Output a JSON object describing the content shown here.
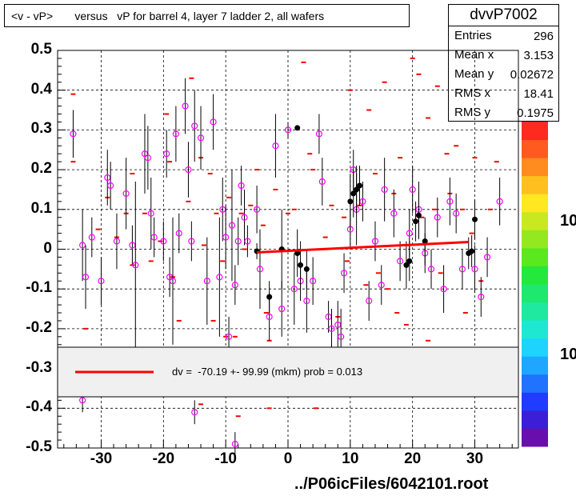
{
  "title": "<v - vP>       versus   vP for barrel 4, layer 7 ladder 2, all wafers",
  "stats": {
    "name": "dvvP7002",
    "rows": [
      {
        "label": "Entries",
        "value": "296"
      },
      {
        "label": "Mean x",
        "value": "3.153"
      },
      {
        "label": "Mean y",
        "value": "0.02672"
      },
      {
        "label": "RMS x",
        "value": "18.41"
      },
      {
        "label": "RMS y",
        "value": "0.1975"
      }
    ]
  },
  "fit_text": "dv =  -70.19 +- 99.99 (mkm) prob = 0.013",
  "file_label": "../P06icFiles/6042101.root",
  "z_labels": [
    "10",
    "10"
  ],
  "colors": {
    "fit": "#ff0000",
    "hist_bins": "#ff0000",
    "profile_markers": "#ff00ff",
    "points": "#000000"
  },
  "chart_data": {
    "type": "scatter",
    "title": "<v - vP>       versus   vP for barrel 4, layer 7 ladder 2, all wafers",
    "xlabel": "",
    "ylabel": "",
    "xlim": [
      -37,
      37
    ],
    "ylim": [
      -0.5,
      0.5
    ],
    "x_ticks": [
      "-30",
      "-20",
      "-10",
      "0",
      "10",
      "20",
      "30"
    ],
    "y_ticks": [
      "0.5",
      "0.4",
      "0.3",
      "0.2",
      "0.1",
      "0",
      "-0.1",
      "-0.2",
      "-0.3",
      "-0.4",
      "-0.5"
    ],
    "grid": true,
    "fit_line": {
      "x": [
        -5,
        29
      ],
      "y": [
        -0.008,
        0.018
      ]
    },
    "profile_points": [
      {
        "x": -34.5,
        "y": 0.29,
        "err": 0.06
      },
      {
        "x": -33,
        "y": 0.01,
        "err": 0.09
      },
      {
        "x": -32.5,
        "y": -0.07,
        "err": 0.08
      },
      {
        "x": -31.5,
        "y": 0.03,
        "err": 0.05
      },
      {
        "x": -30,
        "y": -0.08,
        "err": 0.06
      },
      {
        "x": -29,
        "y": 0.18,
        "err": 0.07
      },
      {
        "x": -28.5,
        "y": 0.16,
        "err": 0.06
      },
      {
        "x": -27.5,
        "y": 0.02,
        "err": 0.07
      },
      {
        "x": -26,
        "y": 0.14,
        "err": 0.09
      },
      {
        "x": -25,
        "y": 0.01,
        "err": 0.05
      },
      {
        "x": -24.5,
        "y": -0.04,
        "err": 0.21
      },
      {
        "x": -23,
        "y": 0.24,
        "err": 0.1
      },
      {
        "x": -22.5,
        "y": 0.23,
        "err": 0.08
      },
      {
        "x": -22,
        "y": 0.09,
        "err": 0.09
      },
      {
        "x": -21.5,
        "y": 0.03,
        "err": 0.05
      },
      {
        "x": -20,
        "y": 0.02,
        "err": 0.05
      },
      {
        "x": -19.5,
        "y": 0.24,
        "err": 0.06
      },
      {
        "x": -19,
        "y": -0.07,
        "err": 0.05
      },
      {
        "x": -18.5,
        "y": -0.08,
        "err": 0.16
      },
      {
        "x": -18,
        "y": 0.29,
        "err": 0.07
      },
      {
        "x": -17.5,
        "y": 0.04,
        "err": 0.05
      },
      {
        "x": -16.5,
        "y": 0.36,
        "err": 0.07
      },
      {
        "x": -16,
        "y": 0.2,
        "err": 0.07
      },
      {
        "x": -15.5,
        "y": 0.02,
        "err": 0.05
      },
      {
        "x": -15,
        "y": 0.31,
        "err": 0.09
      },
      {
        "x": -14,
        "y": 0.28,
        "err": 0.08
      },
      {
        "x": -13,
        "y": -0.08,
        "err": 0.11
      },
      {
        "x": -12,
        "y": 0.32,
        "err": 0.07
      },
      {
        "x": -11,
        "y": -0.07,
        "err": 0.15
      },
      {
        "x": -10.5,
        "y": 0.1,
        "err": 0.08
      },
      {
        "x": -10,
        "y": 0.03,
        "err": 0.08
      },
      {
        "x": -9.5,
        "y": -0.22,
        "err": 0.05
      },
      {
        "x": -9,
        "y": 0.06,
        "err": 0.14
      },
      {
        "x": -8.5,
        "y": -0.09,
        "err": 0.05
      },
      {
        "x": -8,
        "y": 0.02,
        "err": 0.06
      },
      {
        "x": -7.5,
        "y": 0.16,
        "err": 0.05
      },
      {
        "x": -7,
        "y": 0.08,
        "err": 0.07
      },
      {
        "x": -6.5,
        "y": 0.02,
        "err": 0.04
      },
      {
        "x": -5,
        "y": 0.1,
        "err": 0.06
      },
      {
        "x": -4.5,
        "y": -0.05,
        "err": 0.1
      },
      {
        "x": -3,
        "y": -0.17,
        "err": 0.06
      },
      {
        "x": -2,
        "y": 0.26,
        "err": 0.08
      },
      {
        "x": -1,
        "y": -0.15,
        "err": 0.07
      },
      {
        "x": 0,
        "y": 0.3,
        "err": 0.02
      },
      {
        "x": 1,
        "y": -0.1,
        "err": 0.09
      },
      {
        "x": 2,
        "y": -0.08,
        "err": 0.05
      },
      {
        "x": 3,
        "y": -0.13,
        "err": 0.08
      },
      {
        "x": 4,
        "y": -0.08,
        "err": 0.06
      },
      {
        "x": 5,
        "y": 0.29,
        "err": 0.05
      },
      {
        "x": 5.5,
        "y": 0.17,
        "err": 0.06
      },
      {
        "x": 6.5,
        "y": -0.17,
        "err": 0.04
      },
      {
        "x": 7,
        "y": -0.2,
        "err": 0.05
      },
      {
        "x": 8,
        "y": -0.19,
        "err": 0.06
      },
      {
        "x": 8.5,
        "y": -0.22,
        "err": 0.07
      },
      {
        "x": 9,
        "y": -0.06,
        "err": 0.05
      },
      {
        "x": 10,
        "y": 0.05,
        "err": 0.05
      },
      {
        "x": 10.5,
        "y": 0.2,
        "err": 0.05
      },
      {
        "x": 11,
        "y": 0.1,
        "err": 0.09
      },
      {
        "x": 12,
        "y": 0.12,
        "err": 0.05
      },
      {
        "x": 13,
        "y": -0.13,
        "err": 0.05
      },
      {
        "x": 14,
        "y": 0.02,
        "err": 0.05
      },
      {
        "x": 15,
        "y": -0.09,
        "err": 0.05
      },
      {
        "x": 15.5,
        "y": 0.15,
        "err": 0.08
      },
      {
        "x": 17,
        "y": 0.09,
        "err": 0.06
      },
      {
        "x": 18,
        "y": -0.03,
        "err": 0.05
      },
      {
        "x": 19.5,
        "y": 0.04,
        "err": 0.06
      },
      {
        "x": 20,
        "y": 0.15,
        "err": 0.06
      },
      {
        "x": 21,
        "y": 0.1,
        "err": 0.07
      },
      {
        "x": 22,
        "y": -0.01,
        "err": 0.05
      },
      {
        "x": 23,
        "y": -0.05,
        "err": 0.05
      },
      {
        "x": 24,
        "y": 0.08,
        "err": 0.05
      },
      {
        "x": 25,
        "y": -0.1,
        "err": 0.06
      },
      {
        "x": 26,
        "y": 0.12,
        "err": 0.06
      },
      {
        "x": 27,
        "y": 0.09,
        "err": 0.05
      },
      {
        "x": 28,
        "y": -0.05,
        "err": 0.05
      },
      {
        "x": 30,
        "y": -0.05,
        "err": 0.06
      },
      {
        "x": 31,
        "y": -0.12,
        "err": 0.05
      },
      {
        "x": 32,
        "y": -0.02,
        "err": 0.05
      },
      {
        "x": 34,
        "y": 0.12,
        "err": 0.06
      },
      {
        "x": -33,
        "y": -0.38,
        "err": 0.03
      },
      {
        "x": -15,
        "y": -0.41,
        "err": 0.03
      },
      {
        "x": -8.5,
        "y": -0.49,
        "err": 0.03
      }
    ],
    "data_points": [
      {
        "x": 1.5,
        "y": 0.305,
        "err": 0.0
      },
      {
        "x": -5,
        "y": -0.005,
        "err": 0.02
      },
      {
        "x": -3,
        "y": -0.12,
        "err": 0.04
      },
      {
        "x": -1,
        "y": 0.0,
        "err": 0.1
      },
      {
        "x": 1.5,
        "y": -0.01,
        "err": 0.06
      },
      {
        "x": 2,
        "y": -0.04,
        "err": 0.06
      },
      {
        "x": 3,
        "y": -0.05,
        "err": 0.05
      },
      {
        "x": 10,
        "y": 0.12,
        "err": 0.07
      },
      {
        "x": 10.5,
        "y": 0.14,
        "err": 0.06
      },
      {
        "x": 11,
        "y": 0.15,
        "err": 0.06
      },
      {
        "x": 11.5,
        "y": 0.16,
        "err": 0.05
      },
      {
        "x": 19,
        "y": -0.04,
        "err": 0.06
      },
      {
        "x": 19.5,
        "y": -0.03,
        "err": 0.05
      },
      {
        "x": 20.5,
        "y": 0.07,
        "err": 0.05
      },
      {
        "x": 21,
        "y": 0.085,
        "err": 0.06
      },
      {
        "x": 22,
        "y": 0.02,
        "err": 0.06
      },
      {
        "x": 29,
        "y": -0.01,
        "err": 0.04
      },
      {
        "x": 29.5,
        "y": -0.005,
        "err": 0.04
      },
      {
        "x": 30,
        "y": 0.075,
        "err": 0.05
      }
    ],
    "hist_bins": [
      {
        "x": -34.5,
        "y": 0.39
      },
      {
        "x": -34.5,
        "y": 0.22
      },
      {
        "x": -32.5,
        "y": -0.2
      },
      {
        "x": -31,
        "y": -0.28
      },
      {
        "x": -30.5,
        "y": 0.05
      },
      {
        "x": -29,
        "y": 0.13
      },
      {
        "x": -27.5,
        "y": 0.03
      },
      {
        "x": -26,
        "y": 0.09
      },
      {
        "x": -25,
        "y": -0.04
      },
      {
        "x": -25,
        "y": 0.19
      },
      {
        "x": -23,
        "y": 0.09
      },
      {
        "x": -22,
        "y": -0.03
      },
      {
        "x": -20.5,
        "y": 0.02
      },
      {
        "x": -19.5,
        "y": 0.34
      },
      {
        "x": -19,
        "y": 0.22
      },
      {
        "x": -18.5,
        "y": -0.07
      },
      {
        "x": -17.5,
        "y": -0.18
      },
      {
        "x": -16,
        "y": 0.12
      },
      {
        "x": -15.5,
        "y": 0.43
      },
      {
        "x": -14,
        "y": 0.23
      },
      {
        "x": -14,
        "y": -0.39
      },
      {
        "x": -13.5,
        "y": 0.01
      },
      {
        "x": -12.5,
        "y": 0.19
      },
      {
        "x": -12,
        "y": -0.18
      },
      {
        "x": -11.5,
        "y": 0.09
      },
      {
        "x": -10.5,
        "y": -0.03
      },
      {
        "x": -10,
        "y": -0.22
      },
      {
        "x": -9.5,
        "y": 0.13
      },
      {
        "x": -8.5,
        "y": -0.22
      },
      {
        "x": -8,
        "y": -0.42
      },
      {
        "x": -7.5,
        "y": 0.09
      },
      {
        "x": -7,
        "y": 0.0
      },
      {
        "x": -6,
        "y": 0.11
      },
      {
        "x": -5,
        "y": 0.2
      },
      {
        "x": -4,
        "y": 0.06
      },
      {
        "x": -3.5,
        "y": -0.16
      },
      {
        "x": -3,
        "y": -0.23
      },
      {
        "x": -3,
        "y": -0.4
      },
      {
        "x": -2,
        "y": 0.15
      },
      {
        "x": -0.5,
        "y": -0.32
      },
      {
        "x": 0.5,
        "y": -0.33
      },
      {
        "x": 0,
        "y": 0.09
      },
      {
        "x": 1,
        "y": 0.1
      },
      {
        "x": 1.5,
        "y": -0.01
      },
      {
        "x": 2.5,
        "y": 0.47
      },
      {
        "x": 3.5,
        "y": 0.24
      },
      {
        "x": 4,
        "y": 0.2
      },
      {
        "x": 4.5,
        "y": -0.4
      },
      {
        "x": 5,
        "y": -0.29
      },
      {
        "x": 6,
        "y": 0.03
      },
      {
        "x": 7,
        "y": 0.11
      },
      {
        "x": 8,
        "y": -0.17
      },
      {
        "x": 9,
        "y": 0.08
      },
      {
        "x": 9.5,
        "y": -0.03
      },
      {
        "x": 10,
        "y": 0.4
      },
      {
        "x": 11.5,
        "y": 0.11
      },
      {
        "x": 12.5,
        "y": -0.09
      },
      {
        "x": 13,
        "y": 0.35
      },
      {
        "x": 14,
        "y": 0.19
      },
      {
        "x": 14.5,
        "y": -0.06
      },
      {
        "x": 15.5,
        "y": 0.42
      },
      {
        "x": 16,
        "y": -0.1
      },
      {
        "x": 17,
        "y": 0.14
      },
      {
        "x": 17.5,
        "y": -0.16
      },
      {
        "x": 18,
        "y": 0.23
      },
      {
        "x": 19,
        "y": -0.19
      },
      {
        "x": 20,
        "y": 0.48
      },
      {
        "x": 21,
        "y": 0.44
      },
      {
        "x": 21.5,
        "y": 0.08
      },
      {
        "x": 22.5,
        "y": 0.33
      },
      {
        "x": 22.5,
        "y": -0.23
      },
      {
        "x": 23.5,
        "y": 0.1
      },
      {
        "x": 24,
        "y": 0.41
      },
      {
        "x": 24.5,
        "y": -0.06
      },
      {
        "x": 25.5,
        "y": 0.24
      },
      {
        "x": 26,
        "y": 0.14
      },
      {
        "x": 27,
        "y": 0.26
      },
      {
        "x": 28,
        "y": 0.1
      },
      {
        "x": 28.5,
        "y": -0.16
      },
      {
        "x": 29.5,
        "y": 0.04
      },
      {
        "x": 30,
        "y": 0.23
      },
      {
        "x": 31,
        "y": -0.08
      },
      {
        "x": 32.5,
        "y": 0.1
      },
      {
        "x": 33.5,
        "y": 0.22
      }
    ],
    "z_axis": "color palette, 10 to 10 (log scale)"
  }
}
